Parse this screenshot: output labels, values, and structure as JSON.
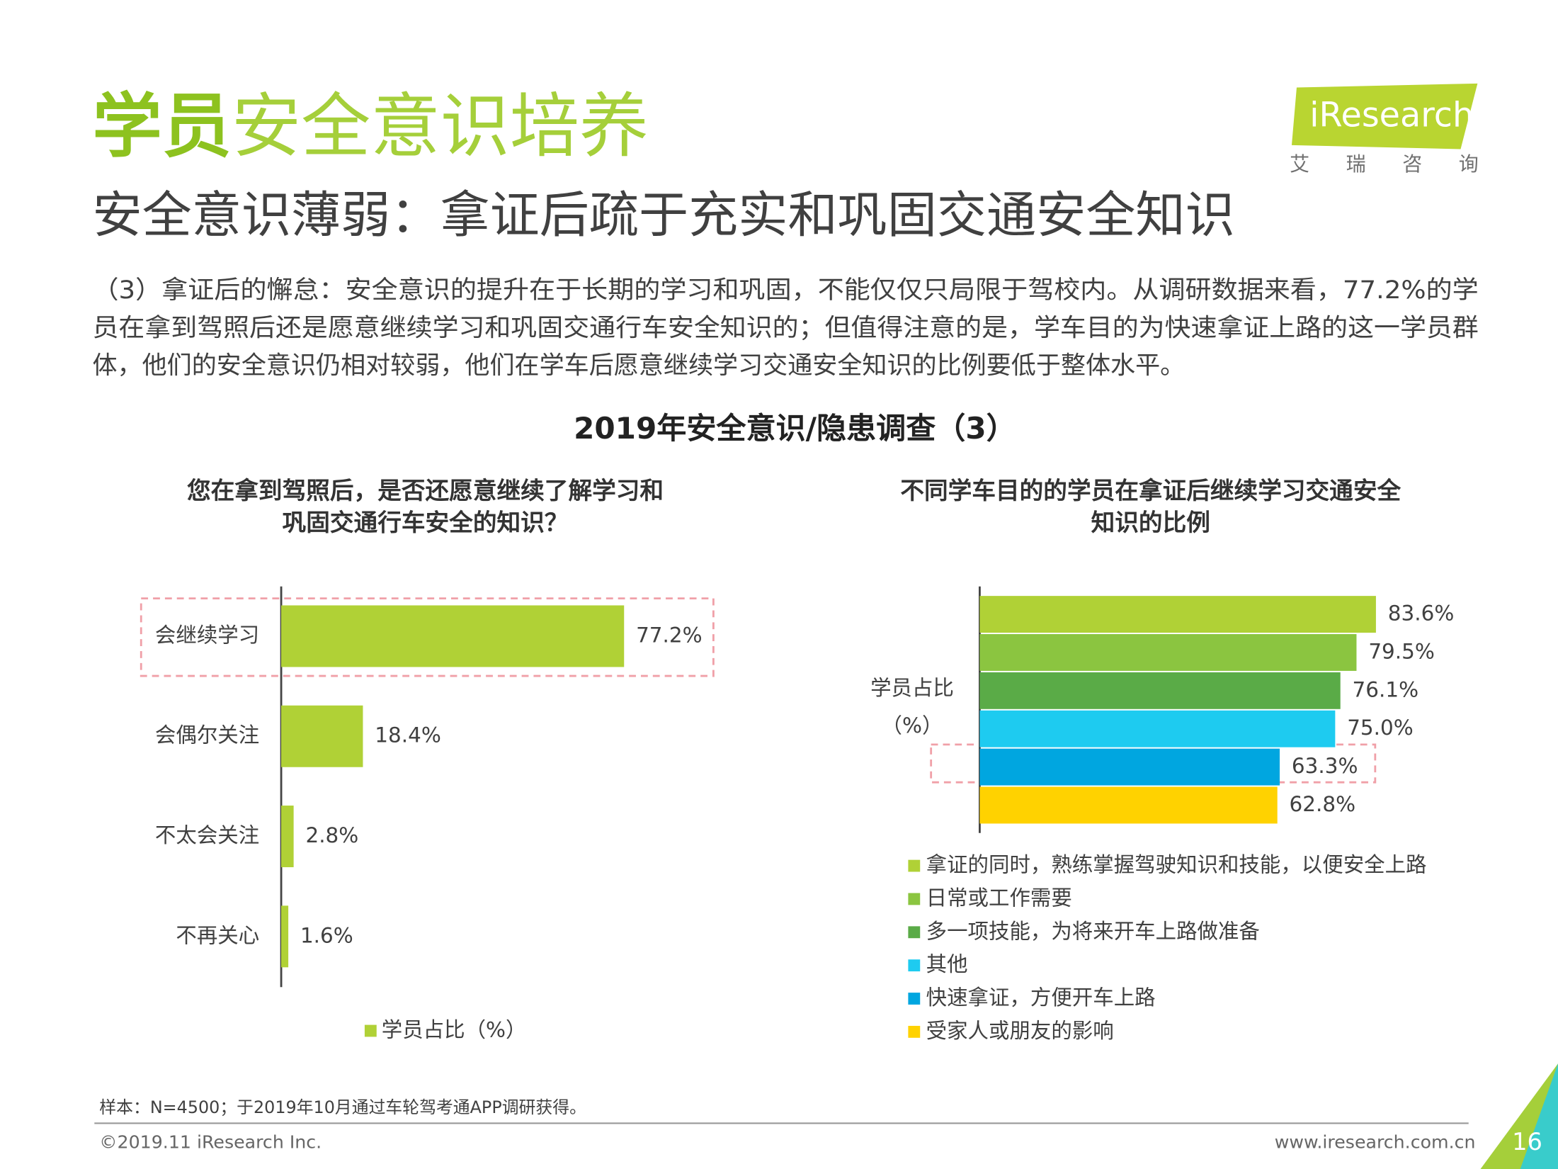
{
  "header": {
    "title_strong": "学员",
    "title_rest": "安全意识培养",
    "subtitle": "安全意识薄弱：拿证后疏于充实和巩固交通安全知识",
    "paragraph": [
      "（3）拿证后的懈怠：安全意识的提升在于长期的学习和巩固，不能仅仅只局限于驾校内。从调研数据来看，77.2%的学",
      "员在拿到驾照后还是愿意继续学习和巩固交通行车安全知识的；但值得注意的是，学车目的为快速拿证上路的这一学员群",
      "体，他们的安全意识仍相对较弱，他们在学车后愿意继续学习交通安全知识的比例要低于整体水平。"
    ],
    "logo": "iResearch",
    "logo_cn": "艾 瑞 咨 询"
  },
  "section_title": "2019年安全意识/隐患调查（3）",
  "chart_data": [
    {
      "type": "bar",
      "orientation": "horizontal",
      "title": [
        "您在拿到驾照后，是否还愿意继续了解学习和",
        "巩固交通行车安全的知识？"
      ],
      "categories": [
        "会继续学习",
        "会偶尔关注",
        "不太会关注",
        "不再关心"
      ],
      "series": [
        {
          "name": "学员占比（%）",
          "color": "#b0d136",
          "values": [
            77.2,
            18.4,
            2.8,
            1.6
          ],
          "value_labels": [
            "77.2%",
            "18.4%",
            "2.8%",
            "1.6%"
          ]
        }
      ]
    },
    {
      "type": "bar",
      "orientation": "horizontal",
      "title": [
        "不同学车目的的学员在拿证后继续学习交通安全",
        "知识的比例"
      ],
      "ylabel": [
        "学员占比",
        "（%）"
      ],
      "series": [
        {
          "name": "拿证的同时，熟练掌握驾驶知识和技能，以便安全上路",
          "color": "#b0d136",
          "values": [
            83.6
          ],
          "value_labels": [
            "83.6%"
          ]
        },
        {
          "name": "日常或工作需要",
          "color": "#8bc540",
          "values": [
            79.5
          ],
          "value_labels": [
            "79.5%"
          ]
        },
        {
          "name": "多一项技能，为将来开车上路做准备",
          "color": "#5aab47",
          "values": [
            76.1
          ],
          "value_labels": [
            "76.1%"
          ]
        },
        {
          "name": "其他",
          "color": "#1ecbf0",
          "values": [
            75.0
          ],
          "value_labels": [
            "75.0%"
          ]
        },
        {
          "name": "快速拿证，方便开车上路",
          "color": "#00a6e0",
          "values": [
            63.3
          ],
          "value_labels": [
            "63.3%"
          ]
        },
        {
          "name": "受家人或朋友的影响",
          "color": "#ffd200",
          "values": [
            62.8
          ],
          "value_labels": [
            "62.8%"
          ]
        }
      ]
    }
  ],
  "footer": {
    "note": "样本：N=4500；于2019年10月通过车轮驾考通APP调研获得。",
    "copyright": "©2019.11 iResearch Inc.",
    "url": "www.iresearch.com.cn",
    "page": "16"
  }
}
